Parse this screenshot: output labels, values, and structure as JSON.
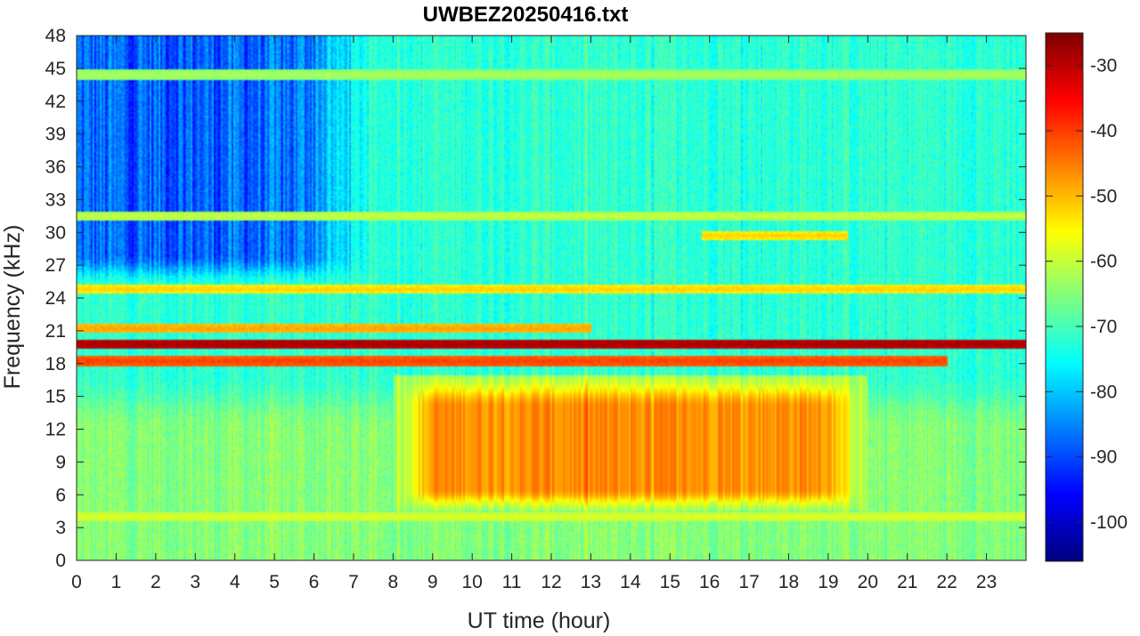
{
  "chart_data": {
    "type": "heatmap",
    "title": "UWBEZ20250416.txt",
    "xlabel": "UT time (hour)",
    "ylabel": "Frequency (kHz)",
    "xlim": [
      0,
      24
    ],
    "ylim": [
      0,
      48
    ],
    "x_ticks": [
      0,
      1,
      2,
      3,
      4,
      5,
      6,
      7,
      8,
      9,
      10,
      11,
      12,
      13,
      14,
      15,
      16,
      17,
      18,
      19,
      20,
      21,
      22,
      23
    ],
    "y_ticks": [
      0,
      3,
      6,
      9,
      12,
      15,
      18,
      21,
      24,
      27,
      30,
      33,
      36,
      39,
      42,
      45,
      48
    ],
    "colorbar": {
      "colormap": "jet",
      "limits": [
        -106,
        -25
      ],
      "ticks": [
        -100,
        -90,
        -80,
        -70,
        -60,
        -50,
        -40,
        -30
      ]
    },
    "features": {
      "background_level_db": -72,
      "upper_band_quiet_region": {
        "freq_khz": [
          25,
          48
        ],
        "time_h": [
          0,
          8
        ],
        "level_db": -88
      },
      "enhanced_emission_region": {
        "freq_khz": [
          5,
          17
        ],
        "time_h": [
          8,
          20
        ],
        "peak_level_db": -48,
        "peak_freq_khz": 10.5
      },
      "transmitter_lines": [
        {
          "freq_khz": 19.8,
          "time_h": [
            0,
            24
          ],
          "level_db": -28
        },
        {
          "freq_khz": 18.2,
          "time_h": [
            0,
            22
          ],
          "level_db": -40
        },
        {
          "freq_khz": 21.2,
          "time_h": [
            0,
            13
          ],
          "level_db": -48
        },
        {
          "freq_khz": 24.8,
          "time_h": [
            0,
            24
          ],
          "level_db": -52
        },
        {
          "freq_khz": 44.4,
          "time_h": [
            0,
            24
          ],
          "level_db": -62
        },
        {
          "freq_khz": 31.5,
          "time_h": [
            0,
            24
          ],
          "level_db": -60
        },
        {
          "freq_khz": 4.0,
          "time_h": [
            0,
            24
          ],
          "level_db": -58
        },
        {
          "freq_khz": 29.7,
          "time_h": [
            15.8,
            19.5
          ],
          "level_db": -52
        }
      ]
    }
  }
}
